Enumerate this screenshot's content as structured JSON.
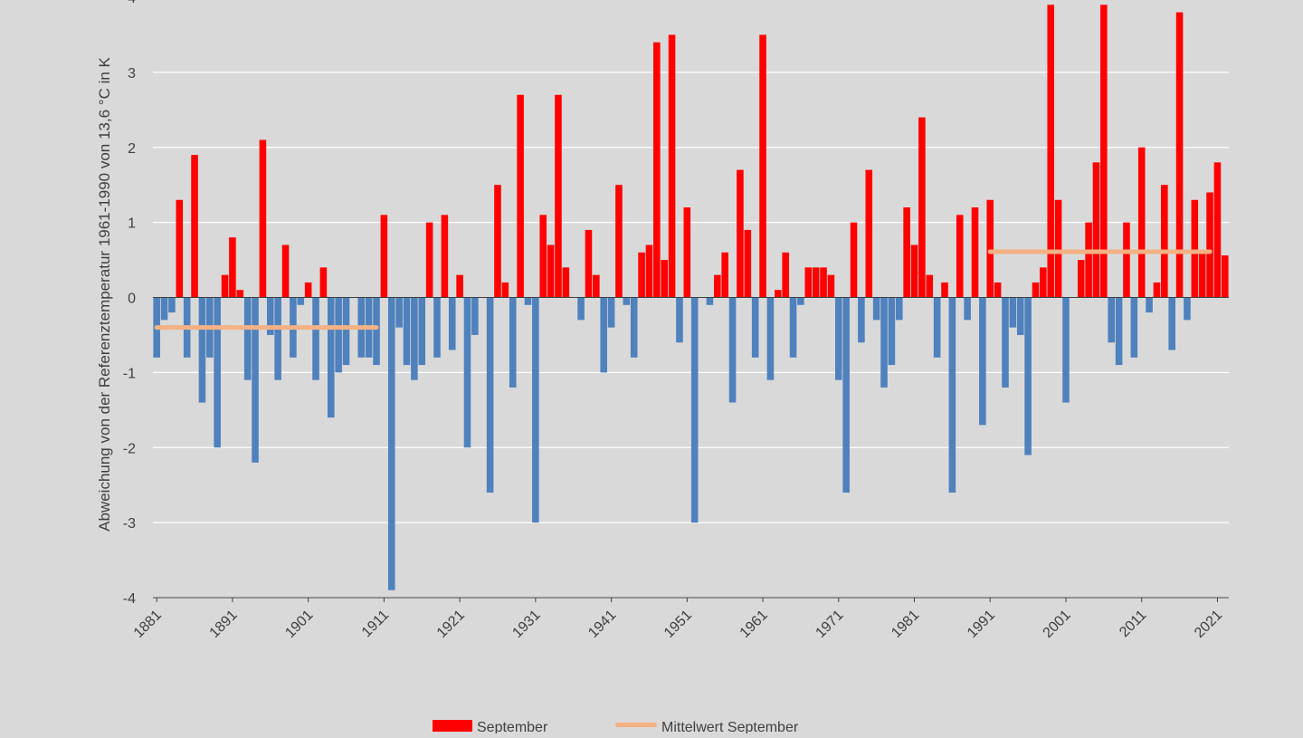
{
  "chart_data": {
    "type": "bar",
    "title": "",
    "xlabel": "",
    "ylabel": "Abweichung von der Referenztemperatur 1961-1990 von  13,6 °C in K",
    "ylim": [
      -4,
      4
    ],
    "yticks": [
      "-4",
      "-3",
      "-2",
      "-1",
      "0",
      "1",
      "2",
      "3",
      "4"
    ],
    "xtick_labels": [
      "1881",
      "1891",
      "1901",
      "1911",
      "1921",
      "1931",
      "1941",
      "1951",
      "1961",
      "1971",
      "1981",
      "1991",
      "2001",
      "2011",
      "2021"
    ],
    "grid": "horizontal",
    "legend_position": "bottom",
    "colors": {
      "positive": "#ff0000",
      "negative": "#4f81bd",
      "mean": "#f4b183",
      "grid": "#ffffff",
      "background": "#d9d9d9",
      "axis": "#404040"
    },
    "x_start": 1881,
    "series": [
      {
        "name": "September",
        "values": [
          -0.8,
          -0.3,
          -0.2,
          1.3,
          -0.8,
          1.9,
          -1.4,
          -0.8,
          -2.0,
          0.3,
          0.8,
          0.1,
          -1.1,
          -2.2,
          2.1,
          -0.5,
          -1.1,
          0.7,
          -0.8,
          -0.1,
          0.2,
          -1.1,
          0.4,
          -1.6,
          -1.0,
          -0.9,
          0.0,
          -0.8,
          -0.8,
          -0.9,
          1.1,
          -3.9,
          -0.4,
          -0.9,
          -1.1,
          -0.9,
          1.0,
          -0.8,
          1.1,
          -0.7,
          0.3,
          -2.0,
          -0.5,
          0.0,
          -2.6,
          1.5,
          0.2,
          -1.2,
          2.7,
          -0.1,
          -3.0,
          1.1,
          0.7,
          2.7,
          0.4,
          0.0,
          -0.3,
          0.9,
          0.3,
          -1.0,
          -0.4,
          1.5,
          -0.1,
          -0.8,
          0.6,
          0.7,
          3.4,
          0.5,
          3.5,
          -0.6,
          1.2,
          -3.0,
          0.0,
          -0.1,
          0.3,
          0.6,
          -1.4,
          1.7,
          0.9,
          -0.8,
          3.5,
          -1.1,
          0.1,
          0.6,
          -0.8,
          -0.1,
          0.4,
          0.4,
          0.4,
          0.3,
          -1.1,
          -2.6,
          1.0,
          -0.6,
          1.7,
          -0.3,
          -1.2,
          -0.9,
          -0.3,
          1.2,
          0.7,
          2.4,
          0.3,
          -0.8,
          0.2,
          -2.6,
          1.1,
          -0.3,
          1.2,
          -1.7,
          1.3,
          0.2,
          -1.2,
          -0.4,
          -0.5,
          -2.1,
          0.2,
          0.4,
          3.9,
          1.3,
          -1.4,
          0.0,
          0.5,
          1.0,
          1.8,
          3.9,
          -0.6,
          -0.9,
          1.0,
          -0.8,
          2.0,
          -0.2,
          0.2,
          1.5,
          -0.7,
          3.8,
          -0.3,
          1.3,
          0.6,
          1.4,
          1.8,
          0.56
        ]
      },
      {
        "name": "Mittelwert September",
        "type": "line",
        "segments": [
          {
            "from": 1881,
            "to": 1910,
            "value": -0.4
          },
          {
            "from": 1991,
            "to": 2020,
            "value": 0.61
          }
        ]
      }
    ]
  }
}
